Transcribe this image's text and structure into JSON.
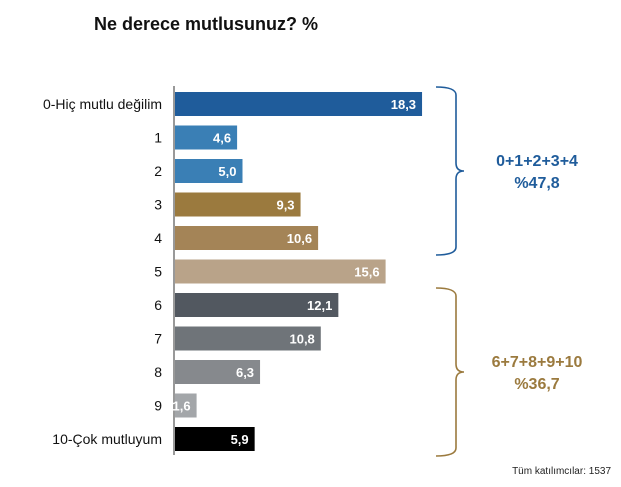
{
  "chart_data": {
    "type": "bar",
    "orientation": "horizontal",
    "title": "Ne derece mutlusunuz? %",
    "categories": [
      "0-Hiç mutlu değilim",
      "1",
      "2",
      "3",
      "4",
      "5",
      "6",
      "7",
      "8",
      "9",
      "10-Çok mutluyum"
    ],
    "values": [
      18.3,
      4.6,
      5.0,
      9.3,
      10.6,
      15.6,
      12.1,
      10.8,
      6.3,
      1.6,
      5.9
    ],
    "value_labels": [
      "18,3",
      "4,6",
      "5,0",
      "9,3",
      "10,6",
      "15,6",
      "12,1",
      "10,8",
      "6,3",
      "1,6",
      "5,9"
    ],
    "colors": [
      "#1f5c9b",
      "#3a7fb5",
      "#3a7fb5",
      "#9b7a3e",
      "#a48457",
      "#b9a389",
      "#525860",
      "#6f7479",
      "#86898d",
      "#a3a6a9",
      "#000000"
    ],
    "groups": [
      {
        "label": "0+1+2+3+4",
        "value": "%47,8",
        "color": "#1f5c9b",
        "from": 0,
        "to": 4
      },
      {
        "label": "6+7+8+9+10",
        "value": "%36,7",
        "color": "#9b7a3e",
        "from": 6,
        "to": 10
      }
    ],
    "xlim": [
      0,
      20
    ],
    "grid": false,
    "footnote": "Tüm katılımcılar: 1537"
  }
}
